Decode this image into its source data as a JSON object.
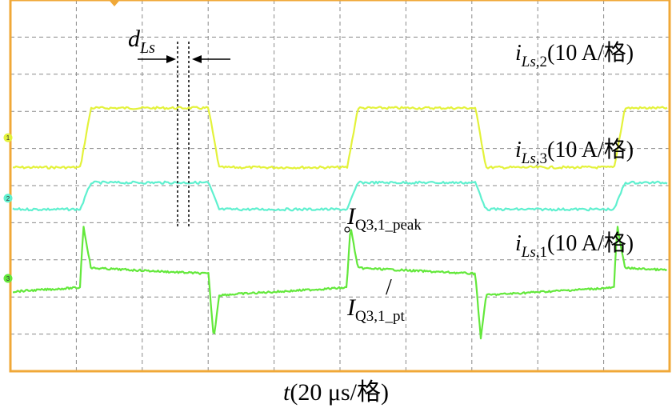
{
  "chart_data": {
    "type": "line",
    "title": "",
    "grid": true,
    "xlabel": {
      "var": "t",
      "rest": "(20 μs/格)"
    },
    "x_unit_per_div": "20 μs",
    "y_unit_per_div": "10 A",
    "divisions": {
      "x": 10,
      "y": 10
    },
    "period_divisions": 4.05,
    "series": [
      {
        "key": "ils2",
        "name": {
          "main": "i",
          "sub": "Ls",
          "tail": ",2",
          "rest": "(10 A/格)"
        },
        "color": "#e3f23a",
        "marker": "1",
        "waveform": "trapezoid",
        "baseline_div": 3.71,
        "high_div": 0.8,
        "low_div": -0.8
      },
      {
        "key": "ils3",
        "name": {
          "main": "i",
          "sub": "Ls",
          "tail": ",3",
          "rest": "(10 A/格)"
        },
        "color": "#5ff0cf",
        "marker": "2",
        "waveform": "trapezoid",
        "baseline_div": 5.34,
        "high_div": 0.42,
        "low_div": -0.3
      },
      {
        "key": "ils1",
        "name": {
          "main": "i",
          "sub": "Ls",
          "tail": ",1",
          "rest": "(10 A/格)"
        },
        "color": "#63e83b",
        "marker": "3",
        "waveform": "spiky-square",
        "baseline_div": 7.5,
        "high_div": 0.28,
        "low_div": -0.45,
        "peak_div": 1.4
      }
    ],
    "annotations": {
      "dls": {
        "main": "d",
        "sub": "Ls"
      },
      "peak": {
        "main": "I",
        "sub": "Q3,1_peak"
      },
      "pt": {
        "main": "I",
        "sub": "Q3,1_pt"
      },
      "slash": "/"
    }
  }
}
